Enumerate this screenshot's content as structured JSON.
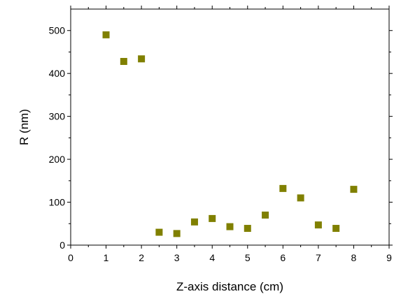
{
  "chart_data": {
    "type": "scatter",
    "xlabel": "Z-axis distance (cm)",
    "ylabel": "R (nm)",
    "xlim": [
      0,
      9
    ],
    "ylim": [
      0,
      550
    ],
    "x_ticks": [
      0,
      1,
      2,
      3,
      4,
      5,
      6,
      7,
      8,
      9
    ],
    "y_ticks": [
      0,
      100,
      200,
      300,
      400,
      500
    ],
    "grid": false,
    "legend": "none",
    "marker": "square",
    "marker_color": "#808000",
    "series": [
      {
        "x": [
          1,
          1.5,
          2,
          2.5,
          3,
          3.5,
          4,
          4.5,
          5,
          5.5,
          6,
          6.5,
          7,
          7.5,
          8
        ],
        "y": [
          490,
          428,
          434,
          30,
          27,
          54,
          62,
          43,
          39,
          70,
          132,
          110,
          47,
          39,
          130
        ]
      }
    ]
  }
}
